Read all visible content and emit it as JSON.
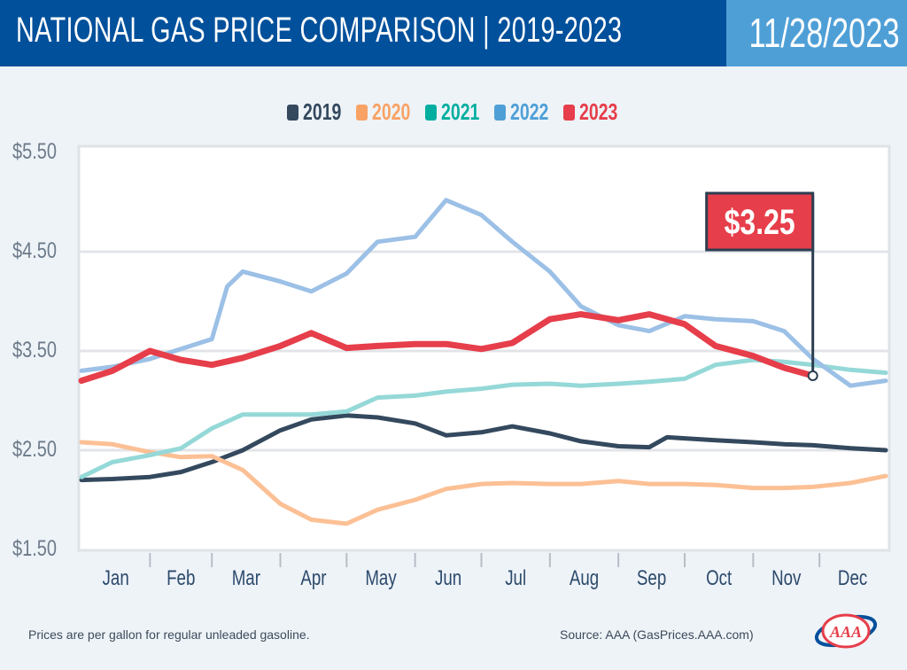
{
  "header": {
    "title": "NATIONAL GAS PRICE COMPARISON | 2019-2023",
    "date": "11/28/2023"
  },
  "footer": {
    "note": "Prices are per gallon for regular unleaded gasoline.",
    "source": "Source: AAA (GasPrices.AAA.com)",
    "logo_text": "AAA"
  },
  "colors": {
    "header_bg": "#00509b",
    "date_bg": "#4f9fd7",
    "callout": "#e63e4a"
  },
  "chart_data": {
    "type": "line",
    "title": "NATIONAL GAS PRICE COMPARISON | 2019-2023",
    "xlabel": "",
    "ylabel": "",
    "ylim": [
      1.5,
      5.5
    ],
    "yticks": [
      "$5.50",
      "$4.50",
      "$3.50",
      "$2.50",
      "$1.50"
    ],
    "ytick_values": [
      5.5,
      4.5,
      3.5,
      2.5,
      1.5
    ],
    "grid": true,
    "legend": "top-center",
    "x_categories": [
      "Jan",
      "Feb",
      "Mar",
      "Apr",
      "May",
      "Jun",
      "Jul",
      "Aug",
      "Sep",
      "Oct",
      "Nov",
      "Dec"
    ],
    "callout": {
      "label": "$3.25",
      "series": "2023",
      "date": "11-28",
      "value": 3.25
    },
    "series": [
      {
        "name": "2019",
        "color": "#34495e",
        "line_color": "#34495e",
        "dates": [
          "01-01",
          "01-15",
          "02-01",
          "02-15",
          "03-01",
          "03-15",
          "04-01",
          "04-15",
          "05-01",
          "05-15",
          "06-01",
          "06-15",
          "07-01",
          "07-15",
          "08-01",
          "08-15",
          "09-01",
          "09-15",
          "09-23",
          "10-01",
          "10-15",
          "11-01",
          "11-15",
          "11-28",
          "12-15",
          "12-31"
        ],
        "values": [
          2.2,
          2.21,
          2.23,
          2.28,
          2.38,
          2.5,
          2.7,
          2.81,
          2.85,
          2.83,
          2.77,
          2.65,
          2.68,
          2.74,
          2.67,
          2.59,
          2.54,
          2.53,
          2.63,
          2.62,
          2.6,
          2.58,
          2.56,
          2.55,
          2.52,
          2.5
        ]
      },
      {
        "name": "2020",
        "color": "#f9a266",
        "line_color": "#fcc095",
        "dates": [
          "01-01",
          "01-15",
          "02-01",
          "02-15",
          "03-01",
          "03-15",
          "04-01",
          "04-15",
          "05-01",
          "05-15",
          "06-01",
          "06-15",
          "07-01",
          "07-15",
          "08-01",
          "08-15",
          "09-01",
          "09-15",
          "10-01",
          "10-15",
          "11-01",
          "11-15",
          "11-28",
          "12-15",
          "12-31"
        ],
        "values": [
          2.58,
          2.56,
          2.48,
          2.43,
          2.44,
          2.3,
          1.96,
          1.8,
          1.76,
          1.9,
          2.0,
          2.11,
          2.16,
          2.17,
          2.16,
          2.16,
          2.19,
          2.16,
          2.16,
          2.15,
          2.12,
          2.12,
          2.13,
          2.17,
          2.24
        ]
      },
      {
        "name": "2021",
        "color": "#00aea0",
        "line_color": "#95d8d8",
        "dates": [
          "01-01",
          "01-15",
          "02-01",
          "02-15",
          "03-01",
          "03-15",
          "04-01",
          "04-15",
          "05-01",
          "05-15",
          "06-01",
          "06-15",
          "07-01",
          "07-15",
          "08-01",
          "08-15",
          "09-01",
          "09-15",
          "10-01",
          "10-15",
          "11-01",
          "11-15",
          "11-28",
          "12-15",
          "12-31"
        ],
        "values": [
          2.23,
          2.38,
          2.45,
          2.52,
          2.72,
          2.86,
          2.86,
          2.86,
          2.89,
          3.03,
          3.05,
          3.09,
          3.12,
          3.16,
          3.17,
          3.15,
          3.17,
          3.19,
          3.22,
          3.36,
          3.41,
          3.39,
          3.36,
          3.31,
          3.28
        ]
      },
      {
        "name": "2022",
        "color": "#4f9fd7",
        "line_color": "#9cc0e6",
        "dates": [
          "01-01",
          "01-15",
          "02-01",
          "02-15",
          "03-01",
          "03-08",
          "03-15",
          "04-01",
          "04-15",
          "05-01",
          "05-15",
          "06-01",
          "06-15",
          "07-01",
          "07-15",
          "08-01",
          "08-15",
          "09-01",
          "09-15",
          "10-01",
          "10-15",
          "11-01",
          "11-15",
          "11-28",
          "12-15",
          "12-31"
        ],
        "values": [
          3.3,
          3.34,
          3.42,
          3.52,
          3.62,
          4.15,
          4.3,
          4.2,
          4.1,
          4.28,
          4.6,
          4.65,
          5.02,
          4.87,
          4.6,
          4.3,
          3.95,
          3.76,
          3.7,
          3.85,
          3.82,
          3.8,
          3.7,
          3.42,
          3.15,
          3.2
        ]
      },
      {
        "name": "2023",
        "color": "#e63e4a",
        "line_color": "#e63e4a",
        "dates": [
          "01-01",
          "01-15",
          "02-01",
          "02-15",
          "03-01",
          "03-15",
          "04-01",
          "04-15",
          "05-01",
          "05-15",
          "06-01",
          "06-15",
          "07-01",
          "07-15",
          "08-01",
          "08-15",
          "09-01",
          "09-15",
          "10-01",
          "10-15",
          "11-01",
          "11-15",
          "11-28"
        ],
        "values": [
          3.2,
          3.3,
          3.5,
          3.41,
          3.36,
          3.43,
          3.55,
          3.68,
          3.53,
          3.55,
          3.57,
          3.57,
          3.52,
          3.58,
          3.82,
          3.87,
          3.81,
          3.87,
          3.77,
          3.55,
          3.45,
          3.33,
          3.25
        ]
      }
    ]
  }
}
